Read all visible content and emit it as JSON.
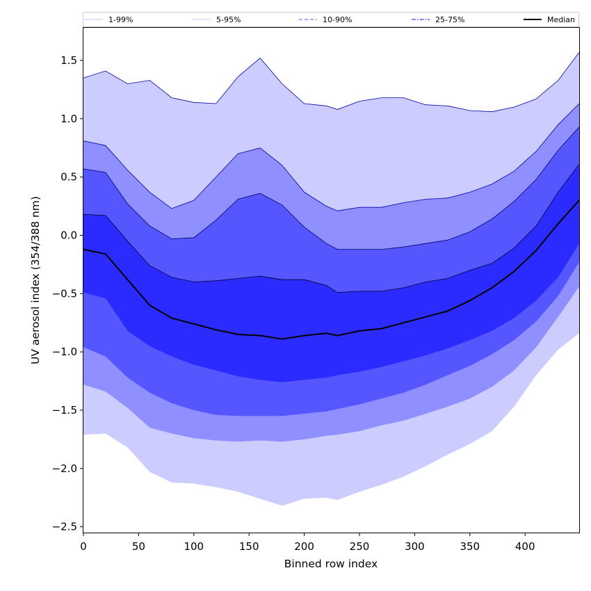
{
  "chart_data": {
    "type": "area",
    "xlabel": "Binned row index",
    "ylabel": "UV aerosol index (354/388 nm)",
    "xlim": [
      0,
      449
    ],
    "ylim": [
      -2.55,
      1.78
    ],
    "x_ticks": [
      0,
      50,
      100,
      150,
      200,
      250,
      300,
      350,
      400
    ],
    "x_tick_labels": [
      "0",
      "50",
      "100",
      "150",
      "200",
      "250",
      "300",
      "350",
      "400"
    ],
    "y_ticks": [
      -2.5,
      -2.0,
      -1.5,
      -1.0,
      -0.5,
      0.0,
      0.5,
      1.0,
      1.5
    ],
    "y_tick_labels": [
      "−2.5",
      "−2.0",
      "−1.5",
      "−1.0",
      "−0.5",
      "0.0",
      "0.5",
      "1.0",
      "1.5"
    ],
    "grid": false,
    "legend_position": "top",
    "x": [
      0,
      20,
      40,
      60,
      80,
      100,
      120,
      140,
      160,
      180,
      200,
      220,
      230,
      250,
      270,
      290,
      310,
      330,
      350,
      370,
      390,
      410,
      430,
      449
    ],
    "bands": [
      {
        "name": "1-99%",
        "color": "#ccccff",
        "edge": "#0000aa",
        "lower": [
          -1.71,
          -1.7,
          -1.82,
          -2.03,
          -2.12,
          -2.13,
          -2.16,
          -2.2,
          -2.26,
          -2.32,
          -2.26,
          -2.25,
          -2.27,
          -2.2,
          -2.14,
          -2.07,
          -1.98,
          -1.88,
          -1.79,
          -1.68,
          -1.47,
          -1.2,
          -0.98,
          -0.84
        ],
        "upper": [
          1.35,
          1.41,
          1.3,
          1.33,
          1.18,
          1.14,
          1.13,
          1.36,
          1.52,
          1.3,
          1.13,
          1.11,
          1.08,
          1.15,
          1.18,
          1.18,
          1.12,
          1.11,
          1.07,
          1.06,
          1.1,
          1.17,
          1.33,
          1.57
        ]
      },
      {
        "name": "5-95%",
        "color": "#8f8fff",
        "edge": "#0000aa",
        "lower": [
          -1.28,
          -1.34,
          -1.48,
          -1.65,
          -1.7,
          -1.74,
          -1.76,
          -1.77,
          -1.76,
          -1.77,
          -1.75,
          -1.72,
          -1.71,
          -1.68,
          -1.63,
          -1.59,
          -1.53,
          -1.47,
          -1.4,
          -1.3,
          -1.16,
          -0.96,
          -0.7,
          -0.44
        ],
        "upper": [
          0.81,
          0.77,
          0.56,
          0.37,
          0.23,
          0.3,
          0.5,
          0.7,
          0.75,
          0.6,
          0.37,
          0.25,
          0.21,
          0.24,
          0.24,
          0.28,
          0.31,
          0.32,
          0.37,
          0.44,
          0.55,
          0.72,
          0.95,
          1.13
        ]
      },
      {
        "name": "10-90%",
        "color": "#5656ff",
        "edge": "#000066",
        "lower": [
          -0.96,
          -1.04,
          -1.22,
          -1.35,
          -1.44,
          -1.5,
          -1.54,
          -1.55,
          -1.55,
          -1.55,
          -1.53,
          -1.51,
          -1.49,
          -1.45,
          -1.4,
          -1.35,
          -1.28,
          -1.2,
          -1.12,
          -1.02,
          -0.9,
          -0.74,
          -0.52,
          -0.23
        ],
        "upper": [
          0.57,
          0.54,
          0.27,
          0.08,
          -0.03,
          -0.02,
          0.13,
          0.31,
          0.36,
          0.26,
          0.07,
          -0.07,
          -0.12,
          -0.12,
          -0.12,
          -0.1,
          -0.07,
          -0.04,
          0.03,
          0.14,
          0.29,
          0.48,
          0.73,
          0.93
        ]
      },
      {
        "name": "25-75%",
        "color": "#2b2bff",
        "edge": "#000033",
        "lower": [
          -0.49,
          -0.54,
          -0.82,
          -0.95,
          -1.04,
          -1.11,
          -1.16,
          -1.21,
          -1.24,
          -1.26,
          -1.24,
          -1.22,
          -1.2,
          -1.17,
          -1.13,
          -1.08,
          -1.03,
          -0.97,
          -0.9,
          -0.82,
          -0.71,
          -0.56,
          -0.36,
          -0.07
        ],
        "upper": [
          0.18,
          0.17,
          -0.05,
          -0.26,
          -0.36,
          -0.4,
          -0.39,
          -0.37,
          -0.35,
          -0.38,
          -0.38,
          -0.43,
          -0.49,
          -0.48,
          -0.48,
          -0.45,
          -0.4,
          -0.37,
          -0.3,
          -0.24,
          -0.11,
          0.08,
          0.37,
          0.61
        ]
      }
    ],
    "median": {
      "name": "Median",
      "color": "#000000",
      "values": [
        -0.12,
        -0.16,
        -0.38,
        -0.6,
        -0.71,
        -0.76,
        -0.81,
        -0.85,
        -0.86,
        -0.89,
        -0.86,
        -0.84,
        -0.86,
        -0.82,
        -0.8,
        -0.75,
        -0.7,
        -0.65,
        -0.56,
        -0.45,
        -0.31,
        -0.13,
        0.1,
        0.3
      ]
    },
    "legend": [
      {
        "label": "1-99%",
        "color": "#d0d0ff",
        "style": "solid"
      },
      {
        "label": "5-95%",
        "color": "#a0a0ff",
        "style": "dotted"
      },
      {
        "label": "10-90%",
        "color": "#7a7aff",
        "style": "dashed"
      },
      {
        "label": "25-75%",
        "color": "#3a3aee",
        "style": "dashdot"
      },
      {
        "label": "Median",
        "color": "#000000",
        "style": "solid"
      }
    ]
  }
}
